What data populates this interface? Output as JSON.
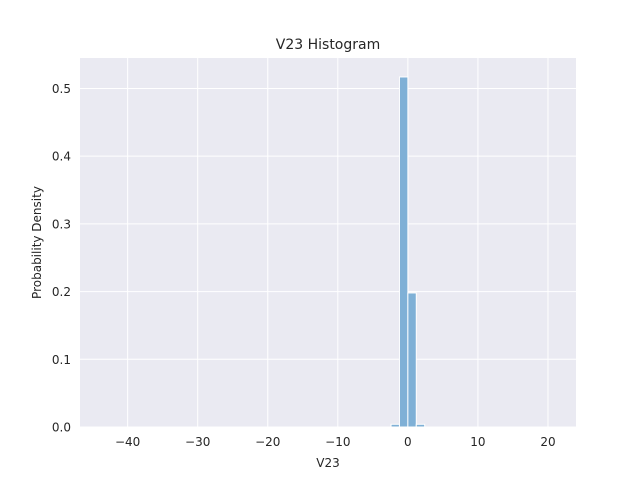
{
  "chart_data": {
    "type": "bar",
    "title": "V23 Histogram",
    "xlabel": "V23",
    "ylabel": "Probability Density",
    "xlim": [
      -46.8,
      24.0
    ],
    "ylim": [
      0,
      0.545
    ],
    "xticks": [
      -40,
      -30,
      -20,
      -10,
      0,
      10,
      20
    ],
    "yticks": [
      0.0,
      0.1,
      0.2,
      0.3,
      0.4,
      0.5
    ],
    "xtick_labels": [
      "−40",
      "−30",
      "−20",
      "−10",
      "0",
      "10",
      "20"
    ],
    "ytick_labels": [
      "0.0",
      "0.1",
      "0.2",
      "0.3",
      "0.4",
      "0.5"
    ],
    "grid": true,
    "bin_width": 1.2,
    "bins": [
      {
        "x0": -2.4,
        "x1": -1.2,
        "density": 0.004
      },
      {
        "x0": -1.2,
        "x1": 0.0,
        "density": 0.517
      },
      {
        "x0": 0.0,
        "x1": 1.2,
        "density": 0.198
      },
      {
        "x0": 1.2,
        "x1": 2.4,
        "density": 0.004
      }
    ],
    "colors": {
      "background": "#eaeaf2",
      "grid": "#ffffff",
      "bar": "#7fb0d6",
      "bar_edge": "#ffffff"
    }
  }
}
